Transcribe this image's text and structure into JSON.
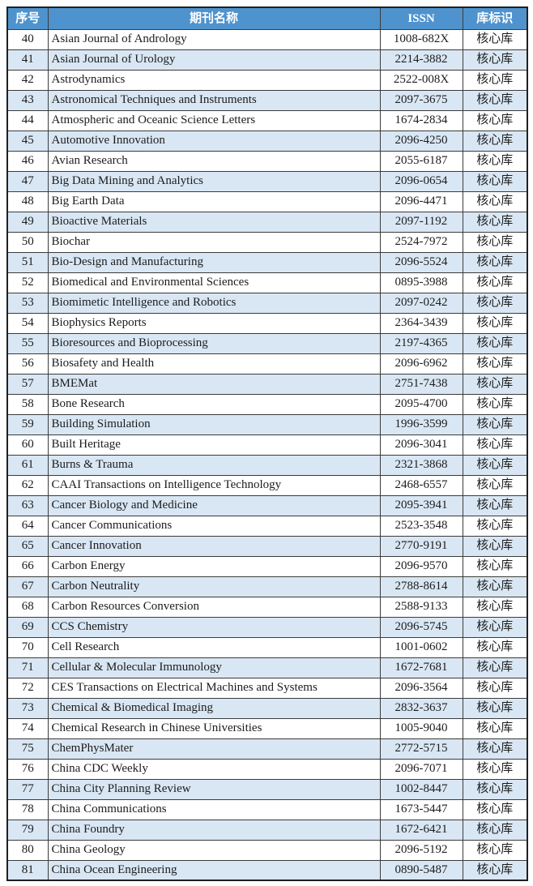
{
  "colors": {
    "header_bg": "#4e93cd",
    "header_text": "#ffffff",
    "band_row_bg": "#d9e7f4",
    "plain_row_bg": "#ffffff",
    "border": "#3b3b3b",
    "text": "#1c1c1c"
  },
  "table": {
    "headers": {
      "index": "序号",
      "name": "期刊名称",
      "issn": "ISSN",
      "db": "库标识"
    },
    "rows": [
      {
        "index": "40",
        "name": "Asian Journal of Andrology",
        "issn": "1008-682X",
        "db": "核心库"
      },
      {
        "index": "41",
        "name": "Asian Journal of Urology",
        "issn": "2214-3882",
        "db": "核心库"
      },
      {
        "index": "42",
        "name": "Astrodynamics",
        "issn": "2522-008X",
        "db": "核心库"
      },
      {
        "index": "43",
        "name": "Astronomical Techniques and Instruments",
        "issn": "2097-3675",
        "db": "核心库"
      },
      {
        "index": "44",
        "name": "Atmospheric and Oceanic Science Letters",
        "issn": "1674-2834",
        "db": "核心库"
      },
      {
        "index": "45",
        "name": "Automotive Innovation",
        "issn": "2096-4250",
        "db": "核心库"
      },
      {
        "index": "46",
        "name": "Avian Research",
        "issn": "2055-6187",
        "db": "核心库"
      },
      {
        "index": "47",
        "name": "Big Data Mining and Analytics",
        "issn": "2096-0654",
        "db": "核心库"
      },
      {
        "index": "48",
        "name": "Big Earth Data",
        "issn": "2096-4471",
        "db": "核心库"
      },
      {
        "index": "49",
        "name": "Bioactive Materials",
        "issn": "2097-1192",
        "db": "核心库"
      },
      {
        "index": "50",
        "name": "Biochar",
        "issn": "2524-7972",
        "db": "核心库"
      },
      {
        "index": "51",
        "name": "Bio-Design and Manufacturing",
        "issn": "2096-5524",
        "db": "核心库"
      },
      {
        "index": "52",
        "name": "Biomedical and Environmental Sciences",
        "issn": "0895-3988",
        "db": "核心库"
      },
      {
        "index": "53",
        "name": "Biomimetic Intelligence and Robotics",
        "issn": "2097-0242",
        "db": "核心库"
      },
      {
        "index": "54",
        "name": "Biophysics Reports",
        "issn": "2364-3439",
        "db": "核心库"
      },
      {
        "index": "55",
        "name": "Bioresources and Bioprocessing",
        "issn": "2197-4365",
        "db": "核心库"
      },
      {
        "index": "56",
        "name": "Biosafety and Health",
        "issn": "2096-6962",
        "db": "核心库"
      },
      {
        "index": "57",
        "name": "BMEMat",
        "issn": "2751-7438",
        "db": "核心库"
      },
      {
        "index": "58",
        "name": "Bone Research",
        "issn": "2095-4700",
        "db": "核心库"
      },
      {
        "index": "59",
        "name": "Building Simulation",
        "issn": "1996-3599",
        "db": "核心库"
      },
      {
        "index": "60",
        "name": "Built Heritage",
        "issn": "2096-3041",
        "db": "核心库"
      },
      {
        "index": "61",
        "name": "Burns & Trauma",
        "issn": "2321-3868",
        "db": "核心库"
      },
      {
        "index": "62",
        "name": "CAAI Transactions on Intelligence Technology",
        "issn": "2468-6557",
        "db": "核心库"
      },
      {
        "index": "63",
        "name": "Cancer Biology and Medicine",
        "issn": "2095-3941",
        "db": "核心库"
      },
      {
        "index": "64",
        "name": "Cancer Communications",
        "issn": "2523-3548",
        "db": "核心库"
      },
      {
        "index": "65",
        "name": "Cancer Innovation",
        "issn": "2770-9191",
        "db": "核心库"
      },
      {
        "index": "66",
        "name": "Carbon Energy",
        "issn": "2096-9570",
        "db": "核心库"
      },
      {
        "index": "67",
        "name": "Carbon Neutrality",
        "issn": "2788-8614",
        "db": "核心库"
      },
      {
        "index": "68",
        "name": "Carbon Resources Conversion",
        "issn": "2588-9133",
        "db": "核心库"
      },
      {
        "index": "69",
        "name": "CCS Chemistry",
        "issn": "2096-5745",
        "db": "核心库"
      },
      {
        "index": "70",
        "name": "Cell Research",
        "issn": "1001-0602",
        "db": "核心库"
      },
      {
        "index": "71",
        "name": "Cellular & Molecular Immunology",
        "issn": "1672-7681",
        "db": "核心库"
      },
      {
        "index": "72",
        "name": "CES Transactions on Electrical Machines and Systems",
        "issn": "2096-3564",
        "db": "核心库"
      },
      {
        "index": "73",
        "name": "Chemical & Biomedical Imaging",
        "issn": "2832-3637",
        "db": "核心库"
      },
      {
        "index": "74",
        "name": "Chemical Research in Chinese Universities",
        "issn": "1005-9040",
        "db": "核心库"
      },
      {
        "index": "75",
        "name": "ChemPhysMater",
        "issn": "2772-5715",
        "db": "核心库"
      },
      {
        "index": "76",
        "name": "China CDC Weekly",
        "issn": "2096-7071",
        "db": "核心库"
      },
      {
        "index": "77",
        "name": "China City Planning Review",
        "issn": "1002-8447",
        "db": "核心库"
      },
      {
        "index": "78",
        "name": "China Communications",
        "issn": "1673-5447",
        "db": "核心库"
      },
      {
        "index": "79",
        "name": "China Foundry",
        "issn": "1672-6421",
        "db": "核心库"
      },
      {
        "index": "80",
        "name": "China Geology",
        "issn": "2096-5192",
        "db": "核心库"
      },
      {
        "index": "81",
        "name": "China Ocean Engineering",
        "issn": "0890-5487",
        "db": "核心库"
      }
    ]
  }
}
